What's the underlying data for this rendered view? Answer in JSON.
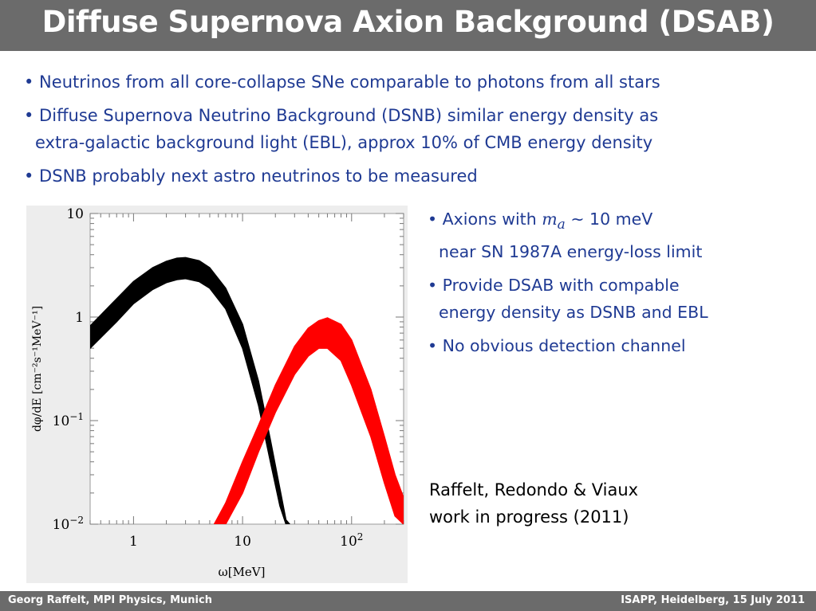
{
  "slide": {
    "title": "Diffuse Supernova Axion Background (DSAB)",
    "bullets": [
      "• Neutrinos from all core-collapse SNe comparable to photons from all stars",
      "• Diffuse Supernova Neutrino Background (DSNB) similar energy density as",
      "extra-galactic background light (EBL), approx 10%  of CMB energy density",
      "• DSNB probably next astro neutrinos to be measured"
    ],
    "side": {
      "b1_prefix": "• Axions with ",
      "b1_math": "m",
      "b1_sub": "a",
      "b1_suffix": " ∼ 10 meV",
      "b1_line2": "near SN 1987A energy-loss limit",
      "b2_line1": "• Provide DSAB with compable",
      "b2_line2": "energy density as DSNB and EBL",
      "b3": "• No obvious detection channel"
    },
    "reference": {
      "line1": "Raffelt, Redondo & Viaux",
      "line2": "work in progress (2011)"
    },
    "footer": {
      "left": "Georg Raffelt, MPI Physics, Munich",
      "right": "ISAPP, Heidelberg, 15 July 2011"
    },
    "colors": {
      "title_bar": "#6b6b6b",
      "text": "#1f3a93",
      "neutrino_band": "#000000",
      "axion_band": "#ff0000"
    }
  },
  "chart_data": {
    "type": "area",
    "xscale": "log",
    "yscale": "log",
    "xlim": [
      0.4,
      300
    ],
    "ylim": [
      0.01,
      10
    ],
    "xlabel": "ω[MeV]",
    "ylabel": "dφ/dE [cm⁻²s⁻¹MeV⁻¹]",
    "xticks": [
      {
        "value": 1,
        "label": "1"
      },
      {
        "value": 10,
        "label": "10"
      },
      {
        "value": 100,
        "label": "10",
        "sup": "2"
      }
    ],
    "yticks": [
      {
        "value": 10,
        "label": "10"
      },
      {
        "value": 1,
        "label": "1"
      },
      {
        "value": 0.1,
        "label": "10",
        "sup": "−1"
      },
      {
        "value": 0.01,
        "label": "10",
        "sup": "−2"
      }
    ],
    "series": [
      {
        "color": "#000000",
        "x": [
          0.4,
          0.7,
          1.0,
          1.5,
          2.0,
          2.5,
          3.0,
          4.0,
          5.0,
          7.0,
          10,
          14,
          18,
          22,
          25,
          27
        ],
        "lower": [
          0.5,
          0.9,
          1.35,
          1.85,
          2.15,
          2.3,
          2.35,
          2.2,
          1.9,
          1.2,
          0.5,
          0.14,
          0.04,
          0.015,
          0.01,
          0.01
        ],
        "upper": [
          0.82,
          1.5,
          2.2,
          3.0,
          3.45,
          3.7,
          3.75,
          3.5,
          3.0,
          1.9,
          0.85,
          0.24,
          0.065,
          0.022,
          0.011,
          0.01
        ]
      },
      {
        "color": "#ff0000",
        "x": [
          5.5,
          7,
          10,
          14,
          20,
          30,
          40,
          50,
          60,
          80,
          100,
          150,
          200,
          250,
          300
        ],
        "lower": [
          0.01,
          0.01,
          0.02,
          0.05,
          0.12,
          0.28,
          0.42,
          0.5,
          0.5,
          0.38,
          0.22,
          0.07,
          0.025,
          0.012,
          0.01
        ],
        "upper": [
          0.01,
          0.016,
          0.04,
          0.09,
          0.22,
          0.52,
          0.78,
          0.92,
          0.98,
          0.85,
          0.6,
          0.2,
          0.07,
          0.03,
          0.018
        ]
      }
    ]
  }
}
